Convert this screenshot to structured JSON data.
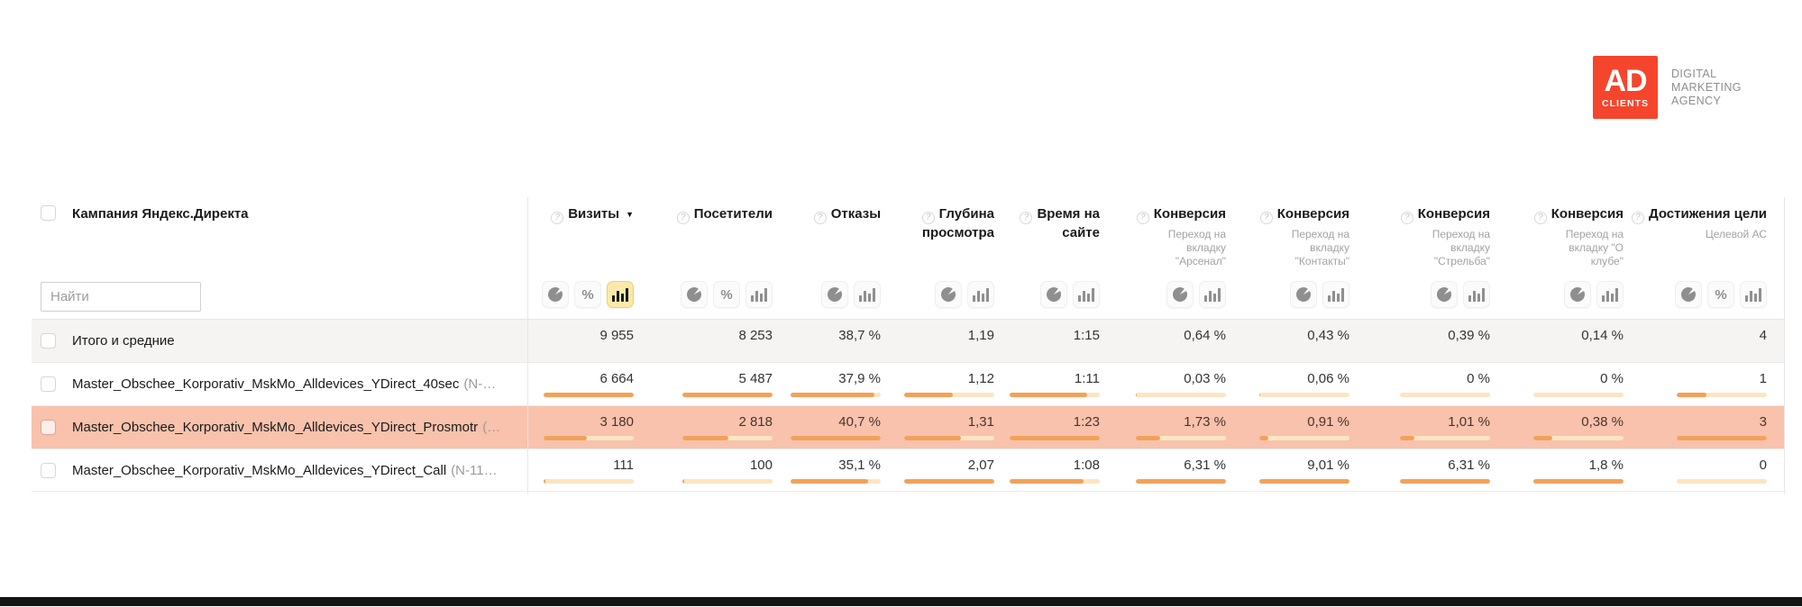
{
  "colors": {
    "accent_orange": "#f5462d",
    "bar_fill": "#f2a259",
    "bar_track": "#fbe5c3",
    "row_highlight": "#f8c2ad",
    "totals_bg": "#f5f4f2",
    "selected_icon_bg": "#fce9a9",
    "selected_icon_border": "#e9cf78",
    "footer_bar": "#141414"
  },
  "logo": {
    "square_line1": "AD",
    "square_line2": "CLIENTS",
    "tagline": [
      "DIGITAL",
      "MARKETING",
      "AGENCY"
    ]
  },
  "table": {
    "campaign_header": "Кампания Яндекс.Директа",
    "search_placeholder": "Найти",
    "columns": [
      {
        "label": "Визиты",
        "sorted": "desc",
        "icons": [
          "pie-chart",
          "percent",
          "bar-chart"
        ],
        "selected_icon": "bar-chart"
      },
      {
        "label": "Посетители",
        "icons": [
          "pie-chart",
          "percent",
          "bar-chart"
        ]
      },
      {
        "label": "Отказы",
        "icons": [
          "pie-chart",
          "bar-chart"
        ]
      },
      {
        "label": "Глубина просмотра",
        "icons": [
          "pie-chart",
          "bar-chart"
        ]
      },
      {
        "label": "Время на сайте",
        "icons": [
          "pie-chart",
          "bar-chart"
        ]
      },
      {
        "label": "Конверсия",
        "subtitle": "Переход на вкладку \"Арсенал\"",
        "icons": [
          "pie-chart",
          "bar-chart"
        ]
      },
      {
        "label": "Конверсия",
        "subtitle": "Переход на вкладку \"Контакты\"",
        "icons": [
          "pie-chart",
          "bar-chart"
        ]
      },
      {
        "label": "Конверсия",
        "subtitle": "Переход на вкладку \"Стрельба\"",
        "icons": [
          "pie-chart",
          "bar-chart"
        ]
      },
      {
        "label": "Конверсия",
        "subtitle": "Переход на вкладку \"О клубе\"",
        "icons": [
          "pie-chart",
          "bar-chart"
        ]
      },
      {
        "label": "Достижения цели",
        "subtitle": "Целевой АС",
        "icons": [
          "pie-chart",
          "percent",
          "bar-chart"
        ]
      }
    ],
    "rows": [
      {
        "name": "Итого и средние",
        "type": "totals",
        "values": [
          "9 955",
          "8 253",
          "38,7 %",
          "1,19",
          "1:15",
          "0,64 %",
          "0,43 %",
          "0,39 %",
          "0,14 %",
          "4"
        ]
      },
      {
        "name": "Master_Obschee_Korporativ_MskMo_Alldevices_YDirect_40sec",
        "suffix": "(N-…",
        "values": [
          "6 664",
          "5 487",
          "37,9 %",
          "1,12",
          "1:11",
          "0,03 %",
          "0,06 %",
          "0 %",
          "0 %",
          "1"
        ],
        "bars": [
          100,
          100,
          93,
          54,
          86,
          1,
          1,
          0,
          0,
          33
        ]
      },
      {
        "name": "Master_Obschee_Korporativ_MskMo_Alldevices_YDirect_Prosmotr",
        "suffix": "(…",
        "highlighted": true,
        "values": [
          "3 180",
          "2 818",
          "40,7 %",
          "1,31",
          "1:23",
          "1,73 %",
          "0,91 %",
          "1,01 %",
          "0,38 %",
          "3"
        ],
        "bars": [
          48,
          51,
          100,
          63,
          100,
          27,
          10,
          16,
          21,
          100
        ]
      },
      {
        "name": "Master_Obschee_Korporativ_MskMo_Alldevices_YDirect_Call",
        "suffix": "(N-11…",
        "values": [
          "111",
          "100",
          "35,1 %",
          "2,07",
          "1:08",
          "6,31 %",
          "9,01 %",
          "6,31 %",
          "1,8 %",
          "0"
        ],
        "bars": [
          2,
          2,
          86,
          100,
          82,
          100,
          100,
          100,
          100,
          0
        ]
      }
    ]
  }
}
